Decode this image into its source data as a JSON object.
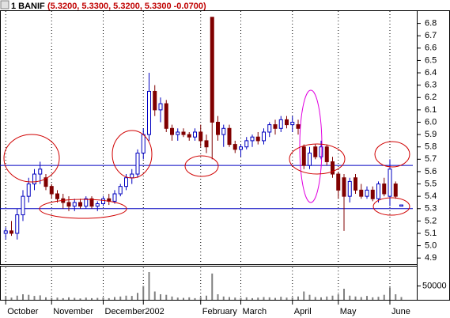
{
  "chart_data": {
    "type": "candlestick",
    "symbol": "1 BANIF",
    "quote": "(5.3200, 5.3300, 5.3200, 5.3300 -0.0700)",
    "up_color": "#0000c0",
    "down_color": "#800000",
    "line_color": "#0000c0",
    "volume_color": "#808080",
    "xlim": [
      -1,
      71
    ],
    "xticks": [
      {
        "value": 0,
        "label": "October"
      },
      {
        "value": 8,
        "label": "November"
      },
      {
        "value": 17,
        "label": "December"
      },
      {
        "value": 24,
        "label": "2002"
      },
      {
        "value": 34,
        "label": "February"
      },
      {
        "value": 41,
        "label": "March"
      },
      {
        "value": 50,
        "label": "April"
      },
      {
        "value": 58,
        "label": "May"
      },
      {
        "value": 67,
        "label": "June"
      }
    ],
    "ylim": [
      4.85,
      6.9
    ],
    "yticks": [
      4.9,
      {
        "value": 5,
        "label": "5.0"
      },
      5.1,
      5.2,
      5.3,
      5.4,
      5.5,
      5.6,
      5.7,
      5.8,
      5.9,
      {
        "value": 6,
        "label": "6.0"
      },
      6.1,
      6.2,
      6.3,
      6.4,
      6.5,
      6.6,
      6.7,
      6.8
    ],
    "hlines": [
      5.65,
      5.3
    ],
    "open": [
      5.1,
      5.12,
      5.1,
      5.25,
      5.4,
      5.5,
      5.58,
      5.55,
      5.48,
      5.42,
      5.38,
      5.35,
      5.32,
      5.35,
      5.32,
      5.38,
      5.32,
      5.34,
      5.38,
      5.36,
      5.42,
      5.48,
      5.55,
      5.58,
      5.75,
      5.9,
      6.25,
      6.1,
      6.15,
      5.95,
      5.9,
      5.92,
      5.9,
      5.88,
      5.92,
      5.85,
      6.85,
      6.0,
      5.9,
      5.95,
      5.82,
      5.78,
      5.8,
      5.85,
      5.88,
      5.85,
      5.92,
      5.98,
      5.95,
      6.02,
      5.98,
      5.98,
      5.8,
      5.65,
      5.8,
      5.72,
      5.8,
      5.68,
      5.58,
      5.55,
      5.4,
      5.55,
      5.45,
      5.4,
      5.45,
      5.38,
      5.5,
      5.4,
      5.5,
      5.32
    ],
    "high": [
      5.15,
      5.2,
      5.3,
      5.45,
      5.55,
      5.62,
      5.68,
      5.58,
      5.5,
      5.45,
      5.42,
      5.4,
      5.38,
      5.38,
      5.4,
      5.4,
      5.36,
      5.4,
      5.42,
      5.45,
      5.5,
      5.58,
      5.62,
      5.78,
      5.95,
      6.4,
      6.3,
      6.2,
      6.18,
      5.98,
      5.95,
      5.95,
      5.92,
      5.95,
      5.98,
      5.9,
      6.85,
      6.05,
      5.98,
      5.98,
      5.85,
      5.82,
      5.88,
      5.9,
      5.92,
      5.95,
      6.0,
      6.02,
      6.05,
      6.05,
      6.05,
      6.02,
      5.82,
      5.8,
      5.82,
      5.85,
      5.82,
      5.72,
      5.6,
      5.58,
      5.55,
      5.58,
      5.5,
      5.48,
      5.48,
      5.52,
      5.55,
      5.7,
      5.52,
      5.33
    ],
    "low": [
      5.05,
      5.08,
      5.05,
      5.2,
      5.35,
      5.45,
      5.5,
      5.45,
      5.38,
      5.35,
      5.3,
      5.28,
      5.28,
      5.3,
      5.3,
      5.3,
      5.28,
      5.32,
      5.33,
      5.34,
      5.4,
      5.45,
      5.5,
      5.55,
      5.7,
      5.85,
      6.05,
      6.0,
      5.92,
      5.85,
      5.85,
      5.88,
      5.85,
      5.85,
      5.8,
      5.75,
      5.7,
      5.85,
      5.8,
      5.8,
      5.75,
      5.72,
      5.78,
      5.8,
      5.82,
      5.82,
      5.88,
      5.9,
      5.92,
      5.95,
      5.92,
      5.9,
      5.62,
      5.62,
      5.7,
      5.7,
      5.65,
      5.55,
      5.38,
      5.12,
      5.35,
      5.42,
      5.38,
      5.38,
      5.36,
      5.35,
      5.4,
      5.32,
      5.38,
      5.32
    ],
    "close": [
      5.12,
      5.1,
      5.25,
      5.4,
      5.5,
      5.58,
      5.62,
      5.48,
      5.42,
      5.38,
      5.35,
      5.32,
      5.35,
      5.32,
      5.38,
      5.32,
      5.34,
      5.38,
      5.36,
      5.42,
      5.48,
      5.55,
      5.58,
      5.75,
      5.9,
      6.25,
      6.1,
      6.15,
      5.95,
      5.9,
      5.92,
      5.9,
      5.88,
      5.92,
      5.85,
      5.8,
      6.0,
      5.9,
      5.95,
      5.82,
      5.78,
      5.8,
      5.85,
      5.88,
      5.85,
      5.92,
      5.98,
      5.95,
      6.02,
      5.98,
      6.0,
      5.95,
      5.65,
      5.75,
      5.72,
      5.8,
      5.68,
      5.58,
      5.45,
      5.4,
      5.52,
      5.45,
      5.4,
      5.45,
      5.38,
      5.5,
      5.42,
      5.62,
      5.4,
      5.33
    ],
    "volume": [
      12000,
      8000,
      15000,
      20000,
      18000,
      14000,
      16000,
      9000,
      7000,
      8000,
      6000,
      9000,
      7000,
      5000,
      8000,
      6000,
      7000,
      9000,
      6000,
      10000,
      12000,
      15000,
      14000,
      25000,
      50000,
      100000,
      30000,
      20000,
      18000,
      12000,
      8000,
      7000,
      9000,
      6000,
      10000,
      15000,
      95000,
      20000,
      12000,
      10000,
      8000,
      7000,
      9000,
      6000,
      8000,
      10000,
      9000,
      7000,
      11000,
      8000,
      9000,
      12000,
      30000,
      18000,
      10000,
      9000,
      12000,
      15000,
      20000,
      40000,
      15000,
      12000,
      10000,
      14000,
      9000,
      11000,
      18000,
      45000,
      20000,
      10000
    ],
    "vlim": [
      0,
      120000
    ],
    "vticks": [
      50000
    ]
  }
}
